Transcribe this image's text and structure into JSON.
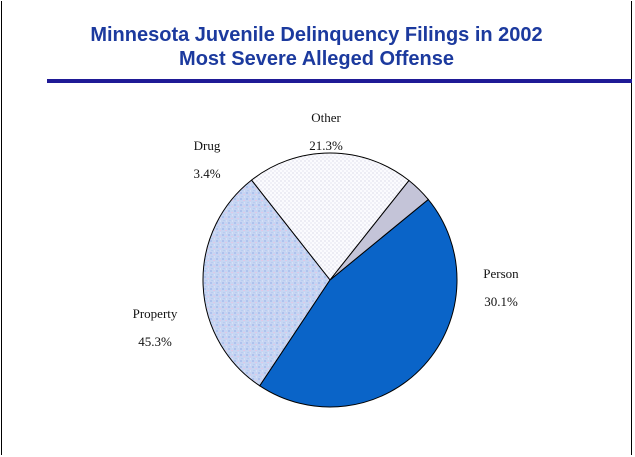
{
  "chart_data": {
    "type": "pie",
    "title": "Minnesota Juvenile Delinquency Filings in 2002",
    "subtitle": "Most Severe Alleged Offense",
    "slices": [
      {
        "label": "Other",
        "value": 21.3,
        "value_text": "21.3%",
        "color": "#f3f3f8",
        "pattern": "dots"
      },
      {
        "label": "Person",
        "value": 30.1,
        "value_text": "30.1%",
        "color": "#c9d6f3",
        "pattern": "texture"
      },
      {
        "label": "Property",
        "value": 45.3,
        "value_text": "45.3%",
        "color": "#0a64c8",
        "pattern": "solid"
      },
      {
        "label": "Drug",
        "value": 3.4,
        "value_text": "3.4%",
        "color": "#c4c4d8",
        "pattern": "solid"
      }
    ]
  }
}
